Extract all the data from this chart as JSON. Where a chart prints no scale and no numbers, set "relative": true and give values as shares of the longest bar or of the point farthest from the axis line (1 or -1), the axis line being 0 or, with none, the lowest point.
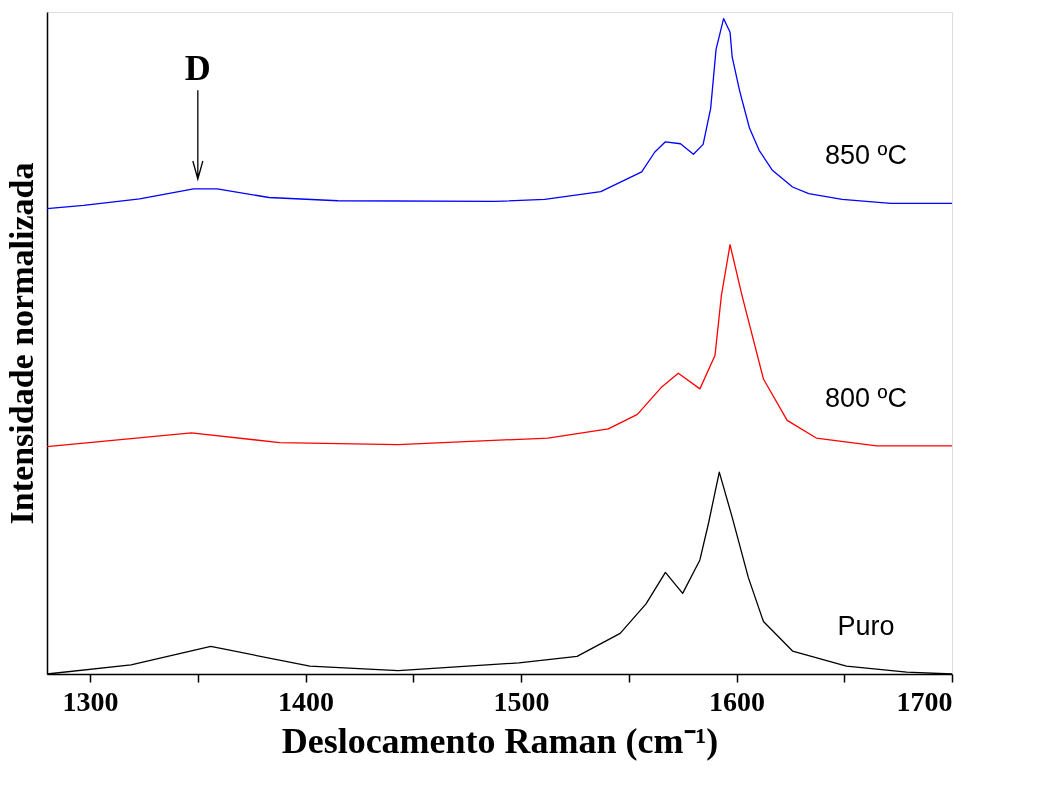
{
  "chart_data": {
    "type": "line",
    "relative": true,
    "xlabel": "Deslocamento Raman (cm⁻¹)",
    "ylabel": "Intensidade normalizada",
    "xlim": [
      1280,
      1700
    ],
    "xticks": [
      1300,
      {
        "value": 1350,
        "label": null
      },
      1400,
      {
        "value": 1450,
        "label": null
      },
      1500,
      {
        "value": 1550,
        "label": null
      },
      1600,
      {
        "value": 1650,
        "label": null
      },
      1700
    ],
    "grid": false,
    "legend": false,
    "marker": "none",
    "line_style": "solid",
    "annotations": [
      {
        "text": "D",
        "x": 1350,
        "y": 0.74
      }
    ],
    "series": [
      {
        "name": "850 ºC",
        "color": "#0000ff",
        "x": [
          1280,
          1297,
          1323,
          1348,
          1359,
          1383,
          1415,
          1488,
          1511,
          1537,
          1556,
          1562,
          1567,
          1574,
          1580,
          1584.5,
          1588,
          1590.5,
          1594,
          1597,
          1598,
          1601.5,
          1606,
          1610.5,
          1616.5,
          1626,
          1633.5,
          1649,
          1671.5,
          1700
        ],
        "values": [
          0.71,
          0.715,
          0.725,
          0.74,
          0.74,
          0.727,
          0.722,
          0.721,
          0.724,
          0.736,
          0.766,
          0.796,
          0.812,
          0.809,
          0.793,
          0.808,
          0.863,
          0.953,
          1.0,
          0.979,
          0.941,
          0.889,
          0.833,
          0.799,
          0.769,
          0.743,
          0.733,
          0.724,
          0.718,
          0.718
        ]
      },
      {
        "name": "800 ºC",
        "color": "#ff0000",
        "x": [
          1280,
          1347,
          1388,
          1443,
          1512.5,
          1540.5,
          1554,
          1565,
          1573,
          1583,
          1590,
          1593,
          1597,
          1602.5,
          1612.5,
          1623.5,
          1637,
          1665,
          1700
        ],
        "values": [
          0.347,
          0.368,
          0.353,
          0.35,
          0.36,
          0.374,
          0.396,
          0.437,
          0.459,
          0.435,
          0.486,
          0.578,
          0.655,
          0.578,
          0.45,
          0.387,
          0.36,
          0.348,
          0.348
        ]
      },
      {
        "name": "Puro",
        "color": "#000000",
        "x": [
          1280,
          1319,
          1356,
          1402,
          1443,
          1499,
          1526,
          1546,
          1558,
          1567,
          1575,
          1583,
          1587,
          1592,
          1598,
          1605.5,
          1612.5,
          1626,
          1651,
          1679,
          1700
        ],
        "values": [
          0.0,
          0.014,
          0.042,
          0.012,
          0.005,
          0.017,
          0.027,
          0.062,
          0.107,
          0.155,
          0.123,
          0.174,
          0.23,
          0.308,
          0.239,
          0.147,
          0.08,
          0.035,
          0.012,
          0.003,
          0.0
        ]
      }
    ]
  }
}
